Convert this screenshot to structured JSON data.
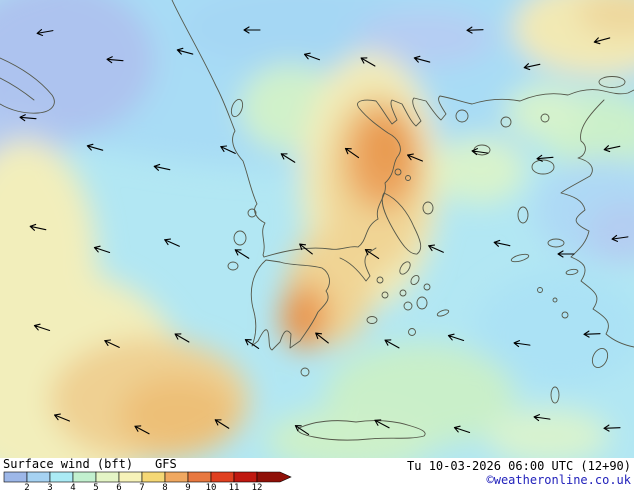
{
  "legend": {
    "title": "Surface wind (bft)",
    "model": "GFS",
    "datetime": "Tu 10-03-2026 06:00 UTC (12+90)",
    "copyright": "©weatheronline.co.uk",
    "scale": {
      "unit": "bft",
      "labels": [
        "2",
        "3",
        "4",
        "5",
        "6",
        "7",
        "8",
        "9",
        "10",
        "11",
        "12"
      ],
      "colors": [
        "#9db7e8",
        "#a6d2f2",
        "#abebf5",
        "#c2f0cf",
        "#e4f5c6",
        "#f7f3b9",
        "#f5d875",
        "#f0a860",
        "#e87840",
        "#e04020",
        "#c01810",
        "#8f1008"
      ]
    }
  },
  "colors": {
    "sea_background": "#b2e7f3",
    "copyright_blue": "#2222bb",
    "coastline": "#55584a"
  },
  "map": {
    "arrows": [
      [
        45,
        32,
        170
      ],
      [
        115,
        60,
        185
      ],
      [
        185,
        52,
        195
      ],
      [
        252,
        30,
        180
      ],
      [
        312,
        57,
        200
      ],
      [
        368,
        62,
        210
      ],
      [
        422,
        60,
        195
      ],
      [
        475,
        30,
        178
      ],
      [
        532,
        66,
        168
      ],
      [
        602,
        40,
        165
      ],
      [
        28,
        118,
        185
      ],
      [
        95,
        148,
        196
      ],
      [
        162,
        168,
        192
      ],
      [
        228,
        150,
        205
      ],
      [
        288,
        158,
        212
      ],
      [
        352,
        153,
        215
      ],
      [
        415,
        158,
        202
      ],
      [
        480,
        152,
        188
      ],
      [
        545,
        158,
        175
      ],
      [
        612,
        148,
        168
      ],
      [
        38,
        228,
        192
      ],
      [
        102,
        250,
        198
      ],
      [
        172,
        243,
        204
      ],
      [
        242,
        254,
        212
      ],
      [
        306,
        249,
        218
      ],
      [
        372,
        254,
        214
      ],
      [
        436,
        249,
        204
      ],
      [
        502,
        244,
        192
      ],
      [
        566,
        254,
        180
      ],
      [
        620,
        238,
        172
      ],
      [
        42,
        328,
        198
      ],
      [
        112,
        344,
        205
      ],
      [
        182,
        338,
        210
      ],
      [
        252,
        344,
        214
      ],
      [
        322,
        338,
        218
      ],
      [
        392,
        344,
        209
      ],
      [
        456,
        338,
        198
      ],
      [
        522,
        344,
        188
      ],
      [
        592,
        334,
        178
      ],
      [
        62,
        418,
        202
      ],
      [
        142,
        430,
        208
      ],
      [
        222,
        424,
        212
      ],
      [
        302,
        430,
        214
      ],
      [
        382,
        424,
        208
      ],
      [
        462,
        430,
        198
      ],
      [
        542,
        418,
        188
      ],
      [
        612,
        428,
        178
      ]
    ]
  }
}
